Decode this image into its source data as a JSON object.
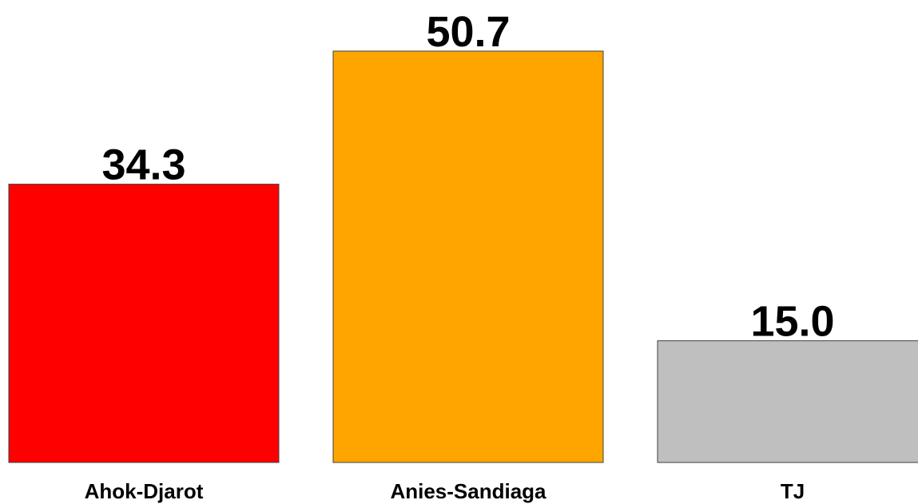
{
  "chart_data": {
    "type": "bar",
    "categories": [
      "Ahok-Djarot",
      "Anies-Sandiaga",
      "TJ"
    ],
    "values": [
      34.3,
      50.7,
      15.0
    ],
    "value_labels": [
      "34.3",
      "50.7",
      "15.0"
    ],
    "colors": [
      "#ff0000",
      "#ffa500",
      "#bfbfbf"
    ]
  }
}
